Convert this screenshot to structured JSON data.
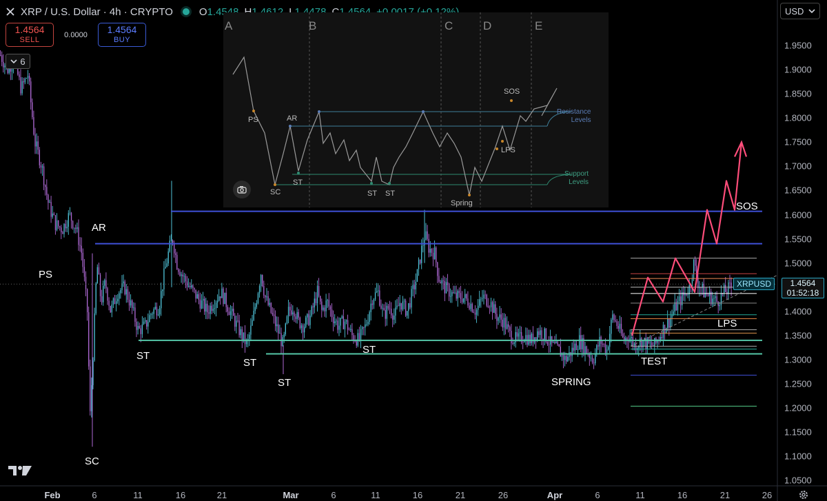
{
  "header": {
    "title": "XRP / U.S. Dollar · 4h · CRYPTO",
    "o_label": "O",
    "o_value": "1.4548",
    "h_label": "H",
    "h_value": "1.4612",
    "l_label": "L",
    "l_value": "1.4478",
    "c_label": "C",
    "c_value": "1.4564",
    "change": "+0.0017 (+0.12%)"
  },
  "trade": {
    "sell_price": "1.4564",
    "sell_label": "SELL",
    "spread": "0.0000",
    "buy_price": "1.4564",
    "buy_label": "BUY"
  },
  "indicators_collapse": {
    "count": "6"
  },
  "currency_select": {
    "value": "USD"
  },
  "price_tag": {
    "symbol": "XRPUSD",
    "price": "1.4564",
    "countdown": "01:52:18"
  },
  "colors": {
    "up": "#26a69a",
    "down": "#ef5350",
    "candle_up": "#4fc3d9",
    "candle_down": "#b06ad6",
    "resistance": "#3f51d9",
    "support": "#55c7a8",
    "projection": "#ff4d7a"
  },
  "icons": [
    "close-x-icon",
    "market-status-icon",
    "chevron-down-icon",
    "camera-icon",
    "tradingview-logo",
    "settings-gear-icon"
  ],
  "chart_data": {
    "type": "candlestick",
    "symbol": "XRP / U.S. Dollar",
    "interval": "4h",
    "ylim": [
      1.02,
      1.99
    ],
    "y_ticks": [
      "1.9500",
      "1.9000",
      "1.8500",
      "1.8000",
      "1.7500",
      "1.7000",
      "1.6500",
      "1.6000",
      "1.5500",
      "1.5000",
      "1.4500",
      "1.4000",
      "1.3500",
      "1.3000",
      "1.2500",
      "1.2000",
      "1.1500",
      "1.1000",
      "1.0500"
    ],
    "x_ticks": [
      "Feb",
      "6",
      "11",
      "16",
      "21",
      "Mar",
      "6",
      "11",
      "16",
      "21",
      "26",
      "Apr",
      "6",
      "11",
      "16",
      "21",
      "26"
    ],
    "price_path": [
      [
        0,
        1.93
      ],
      [
        10,
        1.9
      ],
      [
        20,
        1.92
      ],
      [
        30,
        1.86
      ],
      [
        40,
        1.89
      ],
      [
        50,
        1.75
      ],
      [
        60,
        1.7
      ],
      [
        70,
        1.62
      ],
      [
        80,
        1.58
      ],
      [
        90,
        1.57
      ],
      [
        100,
        1.6
      ],
      [
        110,
        1.57
      ],
      [
        118,
        1.52
      ],
      [
        126,
        1.4
      ],
      [
        130,
        1.18
      ],
      [
        135,
        1.33
      ],
      [
        140,
        1.5
      ],
      [
        146,
        1.42
      ],
      [
        152,
        1.46
      ],
      [
        160,
        1.4
      ],
      [
        170,
        1.44
      ],
      [
        180,
        1.45
      ],
      [
        190,
        1.41
      ],
      [
        200,
        1.36
      ],
      [
        210,
        1.37
      ],
      [
        220,
        1.4
      ],
      [
        230,
        1.41
      ],
      [
        238,
        1.48
      ],
      [
        245,
        1.53
      ],
      [
        250,
        1.55
      ],
      [
        256,
        1.5
      ],
      [
        262,
        1.48
      ],
      [
        270,
        1.46
      ],
      [
        280,
        1.44
      ],
      [
        290,
        1.42
      ],
      [
        300,
        1.4
      ],
      [
        310,
        1.42
      ],
      [
        320,
        1.44
      ],
      [
        330,
        1.41
      ],
      [
        340,
        1.38
      ],
      [
        350,
        1.35
      ],
      [
        358,
        1.33
      ],
      [
        366,
        1.38
      ],
      [
        372,
        1.43
      ],
      [
        378,
        1.48
      ],
      [
        384,
        1.43
      ],
      [
        392,
        1.4
      ],
      [
        400,
        1.37
      ],
      [
        410,
        1.33
      ],
      [
        418,
        1.4
      ],
      [
        425,
        1.41
      ],
      [
        432,
        1.38
      ],
      [
        440,
        1.37
      ],
      [
        450,
        1.39
      ],
      [
        460,
        1.44
      ],
      [
        466,
        1.4
      ],
      [
        474,
        1.42
      ],
      [
        482,
        1.39
      ],
      [
        490,
        1.37
      ],
      [
        500,
        1.38
      ],
      [
        510,
        1.35
      ],
      [
        520,
        1.34
      ],
      [
        530,
        1.37
      ],
      [
        540,
        1.43
      ],
      [
        548,
        1.44
      ],
      [
        556,
        1.39
      ],
      [
        564,
        1.41
      ],
      [
        572,
        1.39
      ],
      [
        580,
        1.42
      ],
      [
        590,
        1.4
      ],
      [
        598,
        1.44
      ],
      [
        604,
        1.47
      ],
      [
        610,
        1.52
      ],
      [
        616,
        1.56
      ],
      [
        622,
        1.53
      ],
      [
        630,
        1.52
      ],
      [
        636,
        1.47
      ],
      [
        644,
        1.45
      ],
      [
        652,
        1.44
      ],
      [
        660,
        1.43
      ],
      [
        670,
        1.43
      ],
      [
        680,
        1.42
      ],
      [
        690,
        1.4
      ],
      [
        700,
        1.43
      ],
      [
        710,
        1.42
      ],
      [
        720,
        1.39
      ],
      [
        730,
        1.38
      ],
      [
        740,
        1.35
      ],
      [
        750,
        1.34
      ],
      [
        760,
        1.35
      ],
      [
        770,
        1.34
      ],
      [
        780,
        1.36
      ],
      [
        790,
        1.35
      ],
      [
        800,
        1.33
      ],
      [
        810,
        1.32
      ],
      [
        820,
        1.3
      ],
      [
        830,
        1.32
      ],
      [
        840,
        1.34
      ],
      [
        850,
        1.32
      ],
      [
        860,
        1.3
      ],
      [
        870,
        1.34
      ],
      [
        880,
        1.32
      ],
      [
        888,
        1.39
      ],
      [
        896,
        1.37
      ],
      [
        904,
        1.34
      ],
      [
        912,
        1.35
      ],
      [
        920,
        1.33
      ],
      [
        930,
        1.34
      ],
      [
        940,
        1.33
      ],
      [
        950,
        1.33
      ],
      [
        960,
        1.36
      ],
      [
        970,
        1.38
      ],
      [
        980,
        1.41
      ],
      [
        990,
        1.43
      ],
      [
        1000,
        1.45
      ],
      [
        1006,
        1.5
      ],
      [
        1012,
        1.46
      ],
      [
        1020,
        1.44
      ],
      [
        1030,
        1.43
      ],
      [
        1040,
        1.42
      ],
      [
        1050,
        1.44
      ],
      [
        1060,
        1.45
      ]
    ],
    "resistance_levels": [
      {
        "from_day": "Feb 14",
        "price": 1.607,
        "to_day": "Apr 25"
      },
      {
        "from_day": "Feb 6",
        "price": 1.54,
        "to_day": "Apr 25"
      }
    ],
    "support_levels": [
      {
        "from_day": "Feb 11",
        "price": 1.34,
        "to_day": "Apr 25"
      },
      {
        "from_day": "Feb 28",
        "price": 1.312,
        "to_day": "Apr 25"
      }
    ],
    "fib_levels": [
      1.51,
      1.478,
      1.468,
      1.45,
      1.437,
      1.417,
      1.393,
      1.385,
      1.362,
      1.355,
      1.328,
      1.322,
      1.268,
      1.204
    ],
    "projection_path": [
      [
        1.35
      ],
      [
        1.47
      ],
      [
        1.42
      ],
      [
        1.51
      ],
      [
        1.44
      ],
      [
        1.61
      ],
      [
        1.54
      ],
      [
        1.67
      ],
      [
        1.61
      ],
      [
        1.75
      ]
    ],
    "annotations": [
      {
        "label": "PS"
      },
      {
        "label": "AR"
      },
      {
        "label": "SC"
      },
      {
        "label": "ST"
      },
      {
        "label": "ST"
      },
      {
        "label": "ST"
      },
      {
        "label": "ST"
      },
      {
        "label": "SPRING"
      },
      {
        "label": "TEST"
      },
      {
        "label": "LPS"
      },
      {
        "label": "SOS"
      }
    ]
  },
  "inset": {
    "phases": [
      "A",
      "B",
      "C",
      "D",
      "E"
    ],
    "labels": {
      "ps": "PS",
      "ar": "AR",
      "sc": "SC",
      "st1": "ST",
      "st2": "ST",
      "st3": "ST",
      "spring": "Spring",
      "lps": "LPS",
      "sos": "SOS"
    },
    "resistance_note": "Resistance\nLevels",
    "support_note": "Support\nLevels"
  }
}
